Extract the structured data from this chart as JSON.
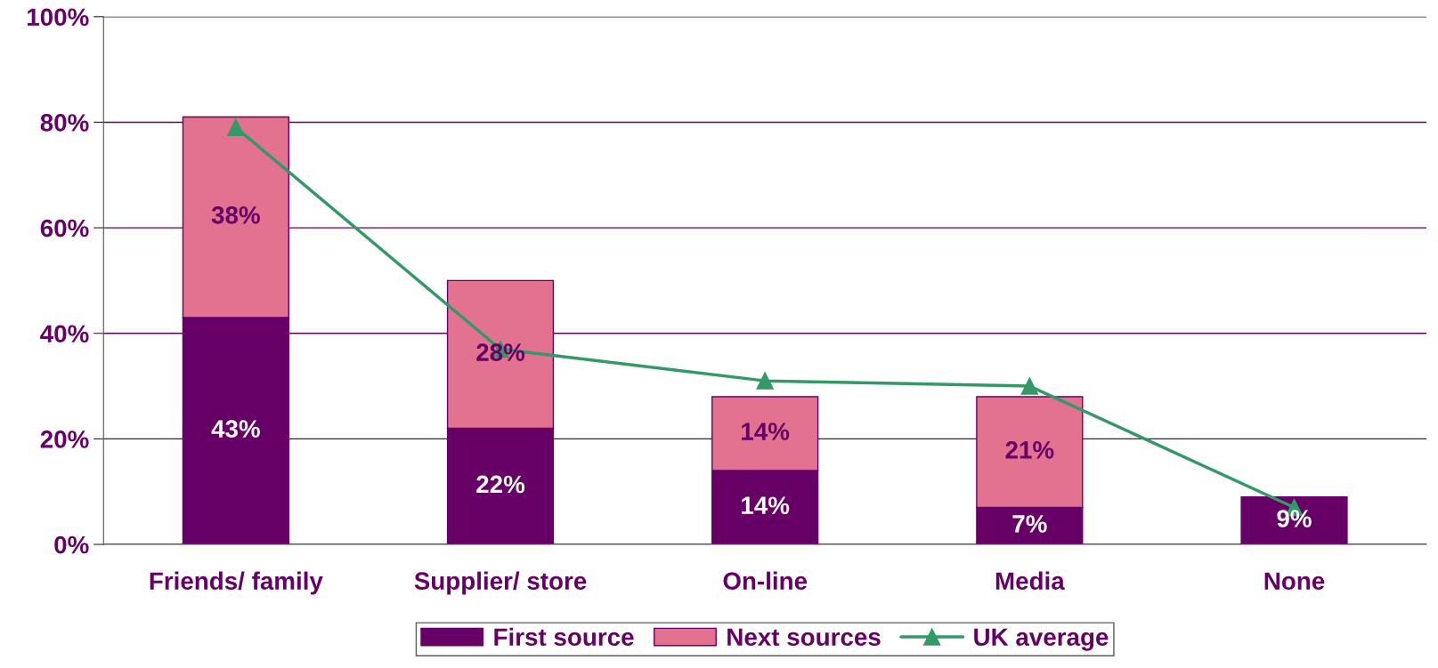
{
  "chart_data": {
    "type": "bar",
    "stacked": true,
    "categories": [
      "Friends/ family",
      "Supplier/ store",
      "On-line",
      "Media",
      "None"
    ],
    "series": [
      {
        "name": "First source",
        "color": "#660066",
        "values": [
          43,
          22,
          14,
          7,
          9
        ],
        "value_labels": [
          "43%",
          "22%",
          "14%",
          "7%",
          "9%"
        ]
      },
      {
        "name": "Next sources",
        "color": "#e2728f",
        "values": [
          38,
          28,
          14,
          21,
          null
        ],
        "value_labels": [
          "38%",
          "28%",
          "14%",
          "21%",
          null
        ]
      },
      {
        "name": "UK average",
        "type": "line",
        "color": "#339966",
        "marker": "triangle",
        "values": [
          79,
          37,
          31,
          30,
          7
        ]
      }
    ],
    "ylim": [
      0,
      100
    ],
    "yticks": [
      {
        "value": 0,
        "label": "0%"
      },
      {
        "value": 20,
        "label": "20%"
      },
      {
        "value": 40,
        "label": "40%"
      },
      {
        "value": 60,
        "label": "60%"
      },
      {
        "value": 80,
        "label": "80%"
      },
      {
        "value": 100,
        "label": "100%"
      }
    ],
    "grid": "y",
    "legend": "bottom"
  }
}
